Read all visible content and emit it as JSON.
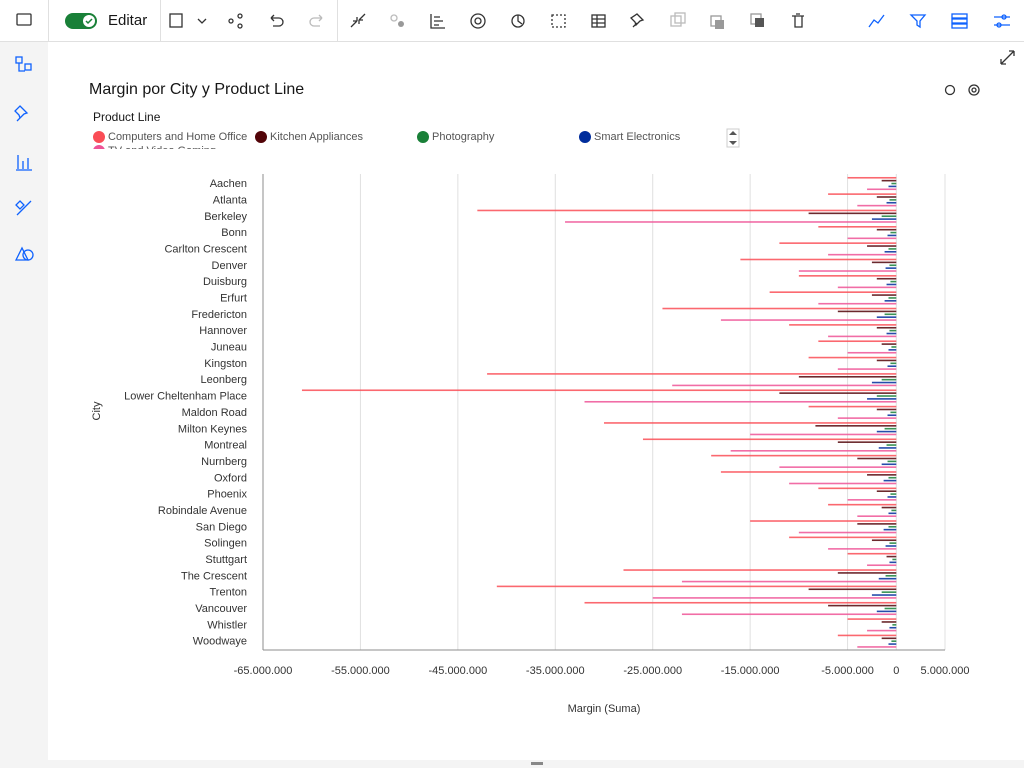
{
  "toolbar": {
    "label": "Editar"
  },
  "chart_data": {
    "type": "hbar",
    "title": "Margin por City y Product Line",
    "legend_title": "Product Line",
    "x_label": "Margin (Suma)",
    "y_label": "City",
    "categories": [
      "Aachen",
      "Atlanta",
      "Berkeley",
      "Bonn",
      "Carlton Crescent",
      "Denver",
      "Duisburg",
      "Erfurt",
      "Fredericton",
      "Hannover",
      "Juneau",
      "Kingston",
      "Leonberg",
      "Lower Cheltenham Place",
      "Maldon Road",
      "Milton Keynes",
      "Montreal",
      "Nurnberg",
      "Oxford",
      "Phoenix",
      "Robindale Avenue",
      "San Diego",
      "Solingen",
      "Stuttgart",
      "The Crescent",
      "Trenton",
      "Vancouver",
      "Whistler",
      "Woodwaye"
    ],
    "series": [
      {
        "name": "Computers and Home Office",
        "color": "#fa4d56",
        "values": [
          -5000000,
          -7000000,
          -43000000,
          -8000000,
          -12000000,
          -16000000,
          -10000000,
          -13000000,
          -24000000,
          -11000000,
          -8000000,
          -9000000,
          -42000000,
          -61000000,
          -9000000,
          -30000000,
          -26000000,
          -19000000,
          -18000000,
          -8000000,
          -7000000,
          -15000000,
          -11000000,
          -5000000,
          -28000000,
          -41000000,
          -32000000,
          -5000000,
          -6000000
        ]
      },
      {
        "name": "Kitchen Appliances",
        "color": "#520408",
        "values": [
          -1500000,
          -2000000,
          -9000000,
          -2000000,
          -3000000,
          -2500000,
          -2000000,
          -2500000,
          -6000000,
          -2000000,
          -1500000,
          -2000000,
          -10000000,
          -12000000,
          -2000000,
          -8300000,
          -6000000,
          -4000000,
          -3000000,
          -2000000,
          -1500000,
          -4000000,
          -2500000,
          -1000000,
          -6000000,
          -9000000,
          -7000000,
          -1500000,
          -1500000
        ]
      },
      {
        "name": "Photography",
        "color": "#198038",
        "values": [
          -500000,
          -700000,
          -1500000,
          -600000,
          -800000,
          -700000,
          -600000,
          -800000,
          -1200000,
          -700000,
          -500000,
          -600000,
          -1500000,
          -2000000,
          -600000,
          -1200000,
          -1000000,
          -900000,
          -800000,
          -600000,
          -500000,
          -800000,
          -700000,
          -400000,
          -1100000,
          -1500000,
          -1200000,
          -400000,
          -500000
        ]
      },
      {
        "name": "Smart Electronics",
        "color": "#002d9c",
        "values": [
          -800000,
          -1000000,
          -2500000,
          -900000,
          -1200000,
          -1100000,
          -1000000,
          -1200000,
          -2000000,
          -1000000,
          -800000,
          -900000,
          -2500000,
          -3000000,
          -900000,
          -2000000,
          -1800000,
          -1500000,
          -1300000,
          -900000,
          -800000,
          -1300000,
          -1100000,
          -700000,
          -1800000,
          -2500000,
          -2000000,
          -700000,
          -800000
        ]
      },
      {
        "name": "TV and Video Gaming",
        "color": "#ee5396",
        "values": [
          -3000000,
          -4000000,
          -34000000,
          -5000000,
          -7000000,
          -10000000,
          -6000000,
          -8000000,
          -18000000,
          -7000000,
          -5000000,
          -6000000,
          -23000000,
          -32000000,
          -6000000,
          -15000000,
          -17000000,
          -12000000,
          -11000000,
          -5000000,
          -4000000,
          -10000000,
          -7000000,
          -3000000,
          -22000000,
          -25000000,
          -22000000,
          -3000000,
          -4000000
        ]
      }
    ],
    "xlim": [
      -65000000,
      5000000
    ],
    "xticks": [
      {
        "value": -65000000,
        "label": "-65.000.000"
      },
      {
        "value": -55000000,
        "label": "-55.000.000"
      },
      {
        "value": -45000000,
        "label": "-45.000.000"
      },
      {
        "value": -35000000,
        "label": "-35.000.000"
      },
      {
        "value": -25000000,
        "label": "-25.000.000"
      },
      {
        "value": -15000000,
        "label": "-15.000.000"
      },
      {
        "value": -5000000,
        "label": "-5.000.000"
      },
      0,
      {
        "value": 5000000,
        "label": "5.000.000"
      }
    ],
    "grid": true
  }
}
